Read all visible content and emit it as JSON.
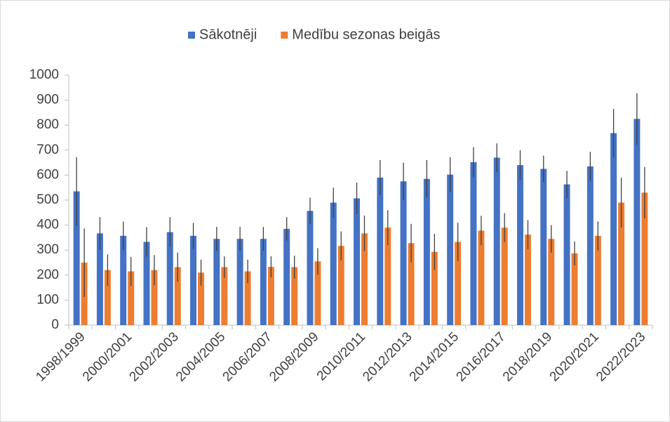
{
  "chart_data": {
    "type": "bar",
    "categories": [
      "1998/1999",
      null,
      "2000/2001",
      null,
      "2002/2003",
      null,
      "2004/2005",
      null,
      "2006/2007",
      null,
      "2008/2009",
      null,
      "2010/2011",
      null,
      "2012/2013",
      null,
      "2014/2015",
      null,
      "2016/2017",
      null,
      "2018/2019",
      null,
      "2020/2021",
      null,
      "2022/2023"
    ],
    "series": [
      {
        "name": "Sākotnēji",
        "color": "#4472c4",
        "values": [
          535,
          367,
          357,
          333,
          372,
          357,
          345,
          345,
          345,
          385,
          457,
          490,
          507,
          590,
          575,
          585,
          602,
          652,
          670,
          640,
          625,
          563,
          635,
          768,
          825
        ],
        "errors": [
          137,
          65,
          57,
          59,
          60,
          52,
          48,
          48,
          48,
          47,
          53,
          60,
          63,
          70,
          75,
          75,
          70,
          60,
          57,
          60,
          53,
          54,
          58,
          97,
          103
        ]
      },
      {
        "name": "Medību sezonas beigās",
        "color": "#ed7d31",
        "values": [
          250,
          220,
          215,
          220,
          232,
          210,
          232,
          215,
          233,
          232,
          255,
          317,
          367,
          390,
          328,
          293,
          333,
          378,
          390,
          362,
          345,
          287,
          357,
          490,
          530
        ],
        "errors": [
          137,
          63,
          58,
          60,
          58,
          52,
          43,
          47,
          42,
          46,
          53,
          58,
          71,
          70,
          77,
          72,
          77,
          59,
          58,
          58,
          55,
          48,
          58,
          100,
          103
        ]
      }
    ],
    "ylim": [
      0,
      1000
    ],
    "yticks": [
      0,
      100,
      200,
      300,
      400,
      500,
      600,
      700,
      800,
      900,
      1000
    ],
    "legend": "top",
    "error_color": "#404040"
  }
}
